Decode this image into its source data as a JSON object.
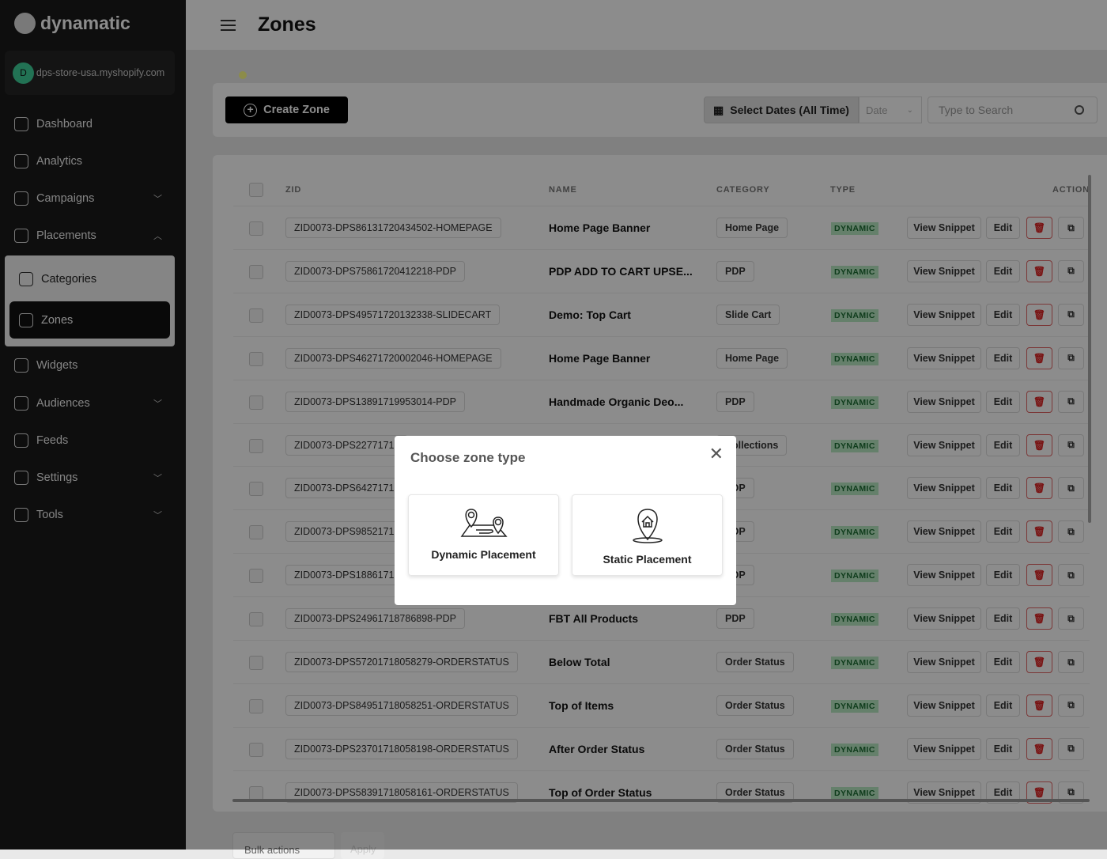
{
  "sidebar": {
    "brand": "dynamatic",
    "store": {
      "initial": "D",
      "domain": "dps-store-usa.myshopify.com"
    },
    "items": [
      {
        "label": "Dashboard",
        "icon": "home-icon"
      },
      {
        "label": "Analytics",
        "icon": "chart-icon"
      },
      {
        "label": "Campaigns",
        "icon": "megaphone-icon",
        "chevron": "down"
      },
      {
        "label": "Placements",
        "icon": "send-icon",
        "chevron": "up"
      },
      {
        "label": "Widgets",
        "icon": "target-icon"
      },
      {
        "label": "Audiences",
        "icon": "users-icon",
        "chevron": "down"
      },
      {
        "label": "Feeds",
        "icon": "feed-icon"
      },
      {
        "label": "Settings",
        "icon": "gear-icon",
        "chevron": "down"
      },
      {
        "label": "Tools",
        "icon": "tools-icon",
        "chevron": "down"
      }
    ],
    "subitems": [
      {
        "label": "Categories",
        "icon": "categories-icon"
      },
      {
        "label": "Zones",
        "icon": "send-icon",
        "active": true
      }
    ]
  },
  "header": {
    "title": "Zones"
  },
  "toolbar": {
    "create": "Create Zone",
    "dates": "Select Dates (All Time)",
    "date_select": "Date",
    "search_placeholder": "Type to Search"
  },
  "table": {
    "headers": [
      "ZID",
      "NAME",
      "CATEGORY",
      "TYPE",
      "ACTION"
    ],
    "actions": {
      "view": "View Snippet",
      "edit": "Edit"
    },
    "rows": [
      {
        "zid": "ZID0073-DPS86131720434502-HOMEPAGE",
        "name": "Home Page Banner",
        "category": "Home Page",
        "type": "DYNAMIC"
      },
      {
        "zid": "ZID0073-DPS75861720412218-PDP",
        "name": "PDP ADD TO CART UPSE...",
        "category": "PDP",
        "type": "DYNAMIC"
      },
      {
        "zid": "ZID0073-DPS49571720132338-SLIDECART",
        "name": "Demo: Top Cart",
        "category": "Slide Cart",
        "type": "DYNAMIC"
      },
      {
        "zid": "ZID0073-DPS46271720002046-HOMEPAGE",
        "name": "Home Page Banner",
        "category": "Home Page",
        "type": "DYNAMIC"
      },
      {
        "zid": "ZID0073-DPS13891719953014-PDP",
        "name": "Handmade Organic Deo...",
        "category": "PDP",
        "type": "DYNAMIC"
      },
      {
        "zid": "ZID0073-DPS22771719",
        "name": "",
        "category": "Collections",
        "type": "DYNAMIC"
      },
      {
        "zid": "ZID0073-DPS64271719",
        "name": "",
        "category": "PDP",
        "type": "DYNAMIC"
      },
      {
        "zid": "ZID0073-DPS98521719",
        "name": "",
        "category": "PDP",
        "type": "DYNAMIC"
      },
      {
        "zid": "ZID0073-DPS18861719",
        "name": "",
        "category": "PDP",
        "type": "DYNAMIC"
      },
      {
        "zid": "ZID0073-DPS24961718786898-PDP",
        "name": "FBT All Products",
        "category": "PDP",
        "type": "DYNAMIC"
      },
      {
        "zid": "ZID0073-DPS57201718058279-ORDERSTATUS",
        "name": "Below Total",
        "category": "Order Status",
        "type": "DYNAMIC"
      },
      {
        "zid": "ZID0073-DPS84951718058251-ORDERSTATUS",
        "name": "Top of Items",
        "category": "Order Status",
        "type": "DYNAMIC"
      },
      {
        "zid": "ZID0073-DPS23701718058198-ORDERSTATUS",
        "name": "After Order Status",
        "category": "Order Status",
        "type": "DYNAMIC"
      },
      {
        "zid": "ZID0073-DPS58391718058161-ORDERSTATUS",
        "name": "Top of Order Status",
        "category": "Order Status",
        "type": "DYNAMIC"
      }
    ]
  },
  "footer": {
    "bulk": "Bulk actions",
    "apply": "Apply"
  },
  "modal": {
    "title": "Choose zone type",
    "options": [
      "Dynamic Placement",
      "Static Placement"
    ]
  },
  "colors": {
    "sidebar": "#1a1a1a",
    "accent": "#000000",
    "dynamic_badge": "#b9e9c4",
    "delete": "#d22222",
    "store_avatar": "#3fcf9a"
  }
}
